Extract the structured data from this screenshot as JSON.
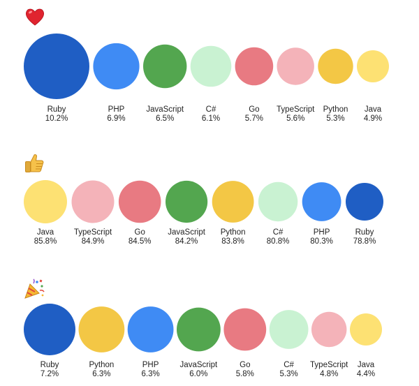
{
  "palette": {
    "Ruby": "#1f5ec4",
    "PHP": "#3f8bf4",
    "JavaScript": "#53a64f",
    "C#": "#c9f2d2",
    "Go": "#e87a82",
    "TypeScript": "#f4b3b9",
    "Python": "#f3c745",
    "Java": "#fde173"
  },
  "chart_data": [
    {
      "type": "bubble",
      "icon": "heart-emoji",
      "categories": [
        "Ruby",
        "PHP",
        "JavaScript",
        "C#",
        "Go",
        "TypeScript",
        "Python",
        "Java"
      ],
      "values": [
        10.2,
        6.9,
        6.5,
        6.1,
        5.7,
        5.6,
        5.3,
        4.9
      ],
      "value_labels": [
        "10.2%",
        "6.9%",
        "6.5%",
        "6.1%",
        "5.7%",
        "5.6%",
        "5.3%",
        "4.9%"
      ]
    },
    {
      "type": "bubble",
      "icon": "thumbs-up-emoji",
      "categories": [
        "Java",
        "TypeScript",
        "Go",
        "JavaScript",
        "Python",
        "C#",
        "PHP",
        "Ruby"
      ],
      "values": [
        85.8,
        84.9,
        84.5,
        84.2,
        83.8,
        80.8,
        80.3,
        78.8
      ],
      "value_labels": [
        "85.8%",
        "84.9%",
        "84.5%",
        "84.2%",
        "83.8%",
        "80.8%",
        "80.3%",
        "78.8%"
      ]
    },
    {
      "type": "bubble",
      "icon": "party-popper-emoji",
      "categories": [
        "Ruby",
        "Python",
        "PHP",
        "JavaScript",
        "Go",
        "C#",
        "TypeScript",
        "Java"
      ],
      "values": [
        7.2,
        6.3,
        6.3,
        6.0,
        5.8,
        5.3,
        4.8,
        4.4
      ],
      "value_labels": [
        "7.2%",
        "6.3%",
        "6.3%",
        "6.0%",
        "5.8%",
        "5.3%",
        "4.8%",
        "4.4%"
      ]
    }
  ]
}
